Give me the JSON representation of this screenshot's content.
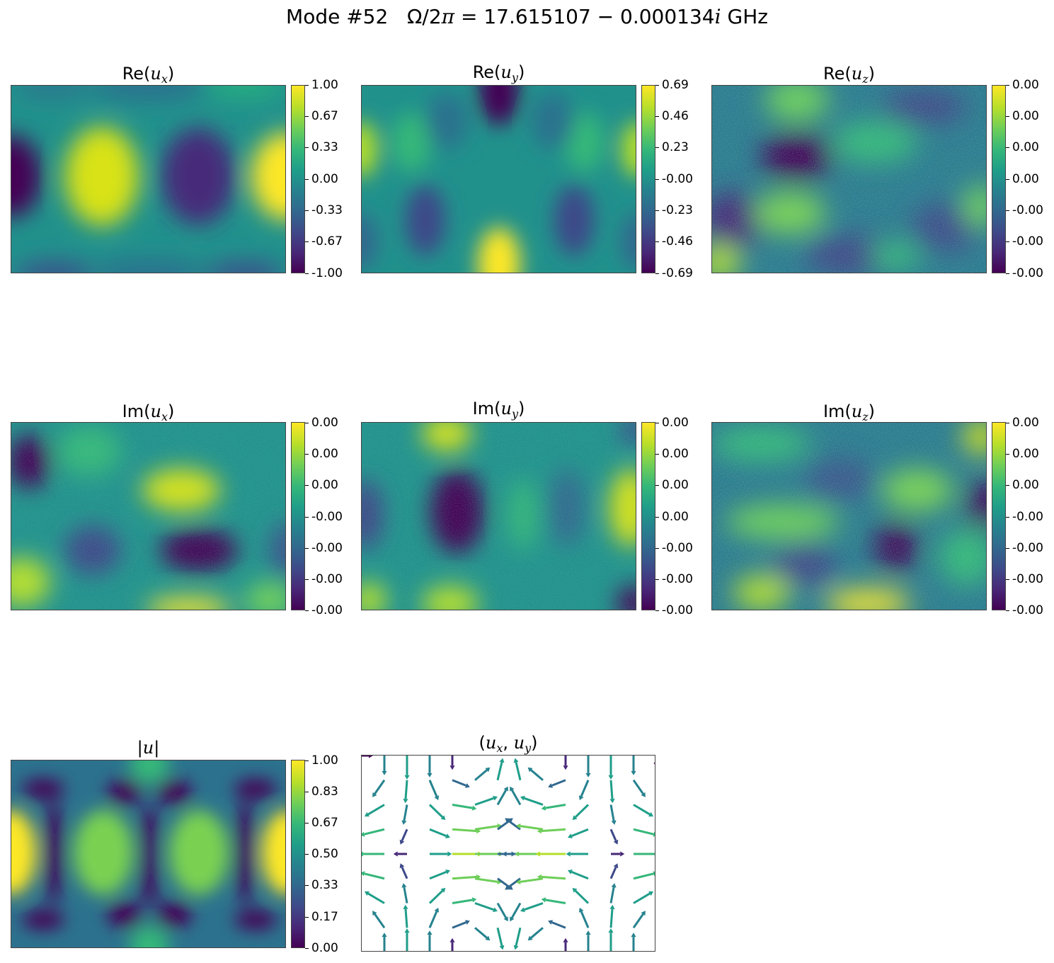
{
  "title": {
    "prefix": "Mode #52",
    "omega_lhs": "Ω/2",
    "pi": "π",
    "equals_value": " = 17.615107 − 0.000134",
    "imag_unit": "i",
    "unit": "GHz"
  },
  "chart_data": [
    {
      "type": "heatmap",
      "title": {
        "head": "Re(",
        "var": "u",
        "sub": "x",
        "tail": ")"
      },
      "colormap": "viridis",
      "colorbar_ticks": [
        "1.00",
        "0.67",
        "0.33",
        "0.00",
        "-0.33",
        "-0.67",
        "-1.00"
      ],
      "clim": [
        -1.0,
        1.0
      ]
    },
    {
      "type": "heatmap",
      "title": {
        "head": "Re(",
        "var": "u",
        "sub": "y",
        "tail": ")"
      },
      "colormap": "viridis",
      "colorbar_ticks": [
        "0.69",
        "0.46",
        "0.23",
        "-0.00",
        "-0.23",
        "-0.46",
        "-0.69"
      ],
      "clim": [
        -0.69,
        0.69
      ]
    },
    {
      "type": "heatmap",
      "title": {
        "head": "Re(",
        "var": "u",
        "sub": "z",
        "tail": ")"
      },
      "colormap": "viridis",
      "colorbar_ticks": [
        "0.00",
        "0.00",
        "0.00",
        "0.00",
        "-0.00",
        "-0.00",
        "-0.00"
      ]
    },
    {
      "type": "heatmap",
      "title": {
        "head": "Im(",
        "var": "u",
        "sub": "x",
        "tail": ")"
      },
      "colormap": "viridis",
      "colorbar_ticks": [
        "0.00",
        "0.00",
        "0.00",
        "-0.00",
        "-0.00",
        "-0.00",
        "-0.00"
      ]
    },
    {
      "type": "heatmap",
      "title": {
        "head": "Im(",
        "var": "u",
        "sub": "y",
        "tail": ")"
      },
      "colormap": "viridis",
      "colorbar_ticks": [
        "0.00",
        "0.00",
        "0.00",
        "0.00",
        "-0.00",
        "-0.00",
        "-0.00"
      ]
    },
    {
      "type": "heatmap",
      "title": {
        "head": "Im(",
        "var": "u",
        "sub": "z",
        "tail": ")"
      },
      "colormap": "viridis",
      "colorbar_ticks": [
        "0.00",
        "0.00",
        "0.00",
        "-0.00",
        "-0.00",
        "-0.00",
        "-0.00"
      ]
    },
    {
      "type": "heatmap",
      "title": {
        "head": "|",
        "var": "u",
        "sub": "",
        "tail": "|"
      },
      "colormap": "viridis",
      "colorbar_ticks": [
        "1.00",
        "0.83",
        "0.67",
        "0.50",
        "0.33",
        "0.17",
        "0.00"
      ],
      "clim": [
        0.0,
        1.0
      ]
    },
    {
      "type": "quiver",
      "title": {
        "head": "(",
        "var": "u",
        "sub": "x",
        "mid": ", ",
        "var2": "u",
        "sub2": "y",
        "tail": ")"
      },
      "colormap": "viridis"
    }
  ]
}
